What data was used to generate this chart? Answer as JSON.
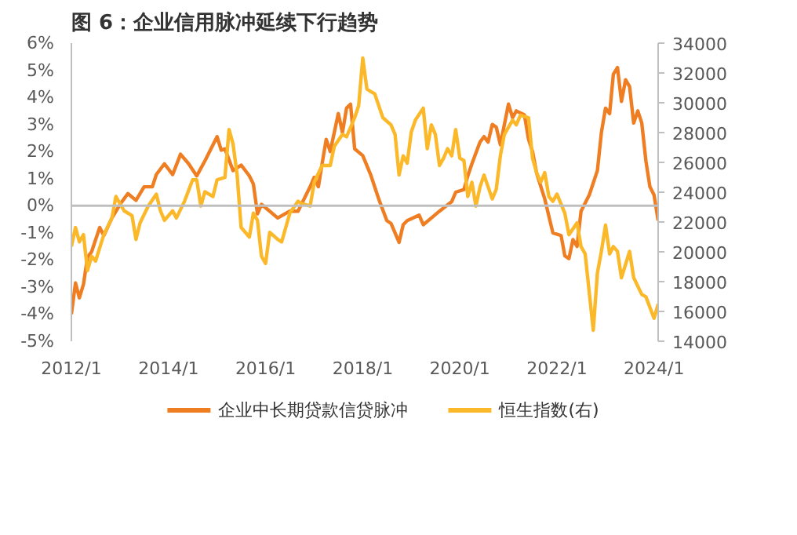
{
  "chart_data": {
    "type": "line",
    "title": "图 6：企业信用脉冲延续下行趋势",
    "xlim": [
      "2012-01",
      "2024-02"
    ],
    "xticks": [
      {
        "value": "2012-01",
        "label": "2012/1"
      },
      {
        "value": "2014-01",
        "label": "2014/1"
      },
      {
        "value": "2016-01",
        "label": "2016/1"
      },
      {
        "value": "2018-01",
        "label": "2018/1"
      },
      {
        "value": "2020-01",
        "label": "2020/1"
      },
      {
        "value": "2022-01",
        "label": "2022/1"
      },
      {
        "value": "2024-01",
        "label": "2024/1"
      }
    ],
    "ylim": [
      -5,
      6
    ],
    "yticks": [
      {
        "value": -5,
        "label": "-5%"
      },
      {
        "value": -4,
        "label": "-4%"
      },
      {
        "value": -3,
        "label": "-3%"
      },
      {
        "value": -2,
        "label": "-2%"
      },
      {
        "value": -1,
        "label": "-1%"
      },
      {
        "value": 0,
        "label": "0%"
      },
      {
        "value": 1,
        "label": "1%"
      },
      {
        "value": 2,
        "label": "2%"
      },
      {
        "value": 3,
        "label": "3%"
      },
      {
        "value": 4,
        "label": "4%"
      },
      {
        "value": 5,
        "label": "5%"
      },
      {
        "value": 6,
        "label": "6%"
      }
    ],
    "y2lim": [
      14000,
      34000
    ],
    "y2ticks": [
      14000,
      16000,
      18000,
      20000,
      22000,
      24000,
      26000,
      28000,
      30000,
      32000,
      34000
    ],
    "ref_lines": [
      {
        "axis": "y",
        "value": 0,
        "color": "#bfbfbf"
      }
    ],
    "legend": "bottom",
    "grid": false,
    "series": [
      {
        "name": "企业中长期贷款信贷脉冲",
        "color": "#ef7d22",
        "x": [
          "2012-01",
          "2012-02",
          "2012-03",
          "2012-04",
          "2012-05",
          "2012-06",
          "2012-08",
          "2012-09",
          "2012-11",
          "2013-01",
          "2013-03",
          "2013-05",
          "2013-07",
          "2013-09",
          "2013-10",
          "2013-12",
          "2014-02",
          "2014-04",
          "2014-06",
          "2014-08",
          "2014-10",
          "2015-01",
          "2015-02",
          "2015-03",
          "2015-05",
          "2015-07",
          "2015-09",
          "2015-10",
          "2015-11",
          "2015-12",
          "2016-02",
          "2016-04",
          "2016-07",
          "2016-09",
          "2016-12",
          "2017-01",
          "2017-02",
          "2017-03",
          "2017-04",
          "2017-05",
          "2017-07",
          "2017-08",
          "2017-09",
          "2017-10",
          "2017-11",
          "2018-01",
          "2018-03",
          "2018-05",
          "2018-07",
          "2018-08",
          "2018-10",
          "2018-11",
          "2018-12",
          "2019-03",
          "2019-04",
          "2019-06",
          "2019-08",
          "2019-11",
          "2019-12",
          "2020-02",
          "2020-03",
          "2020-04",
          "2020-06",
          "2020-07",
          "2020-08",
          "2020-09",
          "2020-10",
          "2020-11",
          "2021-01",
          "2021-02",
          "2021-03",
          "2021-05",
          "2021-06",
          "2021-07",
          "2021-08",
          "2021-10",
          "2021-12",
          "2022-02",
          "2022-03",
          "2022-04",
          "2022-05",
          "2022-06",
          "2022-07",
          "2022-09",
          "2022-11",
          "2022-12",
          "2023-01",
          "2023-02",
          "2023-03",
          "2023-04",
          "2023-05",
          "2023-06",
          "2023-07",
          "2023-08",
          "2023-09",
          "2023-10",
          "2023-11",
          "2023-12",
          "2024-01",
          "2024-02"
        ],
        "values": [
          -4.0,
          -2.85,
          -3.4,
          -2.9,
          -1.9,
          -1.7,
          -0.8,
          -1.1,
          -0.45,
          0.05,
          0.45,
          0.2,
          0.7,
          0.7,
          1.15,
          1.55,
          1.15,
          1.9,
          1.55,
          1.1,
          1.65,
          2.55,
          2.05,
          2.1,
          1.3,
          1.5,
          1.1,
          0.8,
          -0.3,
          0.05,
          -0.2,
          -0.45,
          -0.2,
          -0.2,
          0.7,
          1.05,
          0.7,
          1.55,
          2.45,
          2.0,
          3.4,
          2.7,
          3.6,
          3.75,
          2.1,
          1.85,
          1.15,
          0.25,
          -0.55,
          -0.65,
          -1.35,
          -0.7,
          -0.55,
          -0.35,
          -0.7,
          -0.45,
          -0.2,
          0.15,
          0.5,
          0.6,
          1.1,
          1.55,
          2.35,
          2.55,
          2.35,
          3.0,
          2.9,
          2.25,
          3.75,
          3.25,
          3.5,
          3.35,
          2.45,
          2.0,
          1.2,
          0.25,
          -1.0,
          -1.1,
          -1.85,
          -1.95,
          -1.25,
          -1.5,
          -0.2,
          0.4,
          1.3,
          2.7,
          3.6,
          3.4,
          4.85,
          5.1,
          3.85,
          4.65,
          4.4,
          3.05,
          3.5,
          3.05,
          1.65,
          0.7,
          0.4,
          -0.55
        ]
      },
      {
        "name": "恒生指数(右)",
        "color": "#fbb829",
        "axis": "y2",
        "x": [
          "2012-01",
          "2012-02",
          "2012-03",
          "2012-04",
          "2012-05",
          "2012-06",
          "2012-07",
          "2012-09",
          "2012-11",
          "2012-12",
          "2013-02",
          "2013-04",
          "2013-05",
          "2013-06",
          "2013-08",
          "2013-10",
          "2013-11",
          "2013-12",
          "2014-02",
          "2014-03",
          "2014-05",
          "2014-07",
          "2014-08",
          "2014-09",
          "2014-10",
          "2014-12",
          "2015-01",
          "2015-03",
          "2015-04",
          "2015-05",
          "2015-06",
          "2015-07",
          "2015-09",
          "2015-10",
          "2015-11",
          "2015-12",
          "2016-01",
          "2016-02",
          "2016-04",
          "2016-05",
          "2016-07",
          "2016-09",
          "2016-10",
          "2016-12",
          "2017-01",
          "2017-03",
          "2017-05",
          "2017-06",
          "2017-08",
          "2017-09",
          "2017-11",
          "2017-12",
          "2018-01",
          "2018-02",
          "2018-03",
          "2018-04",
          "2018-06",
          "2018-08",
          "2018-09",
          "2018-10",
          "2018-11",
          "2018-12",
          "2019-01",
          "2019-02",
          "2019-04",
          "2019-05",
          "2019-06",
          "2019-07",
          "2019-08",
          "2019-09",
          "2019-10",
          "2019-11",
          "2019-12",
          "2020-01",
          "2020-02",
          "2020-03",
          "2020-04",
          "2020-05",
          "2020-06",
          "2020-07",
          "2020-09",
          "2020-10",
          "2020-11",
          "2020-12",
          "2021-02",
          "2021-03",
          "2021-04",
          "2021-06",
          "2021-07",
          "2021-08",
          "2021-09",
          "2021-10",
          "2021-11",
          "2021-12",
          "2022-01",
          "2022-03",
          "2022-04",
          "2022-06",
          "2022-07",
          "2022-08",
          "2022-10",
          "2022-11",
          "2022-12",
          "2023-01",
          "2023-02",
          "2023-03",
          "2023-04",
          "2023-05",
          "2023-07",
          "2023-08",
          "2023-10",
          "2023-11",
          "2024-01",
          "2024-02"
        ],
        "values": [
          20350,
          21630,
          20670,
          21150,
          18740,
          19700,
          19380,
          21150,
          22270,
          23710,
          22750,
          22430,
          20830,
          21950,
          23070,
          23870,
          22750,
          22110,
          22750,
          22270,
          23390,
          24830,
          24830,
          23070,
          24030,
          23710,
          24830,
          24990,
          28200,
          27240,
          25150,
          21630,
          20990,
          22590,
          22110,
          19700,
          19220,
          21310,
          20830,
          20670,
          22590,
          23390,
          23230,
          23070,
          24670,
          25790,
          25790,
          27080,
          27880,
          27720,
          29000,
          29800,
          33000,
          30920,
          30760,
          30600,
          29000,
          28520,
          27880,
          25150,
          26440,
          25950,
          28040,
          28840,
          29640,
          26920,
          28520,
          27880,
          25790,
          26280,
          26920,
          26440,
          28200,
          26280,
          26120,
          23710,
          24670,
          23070,
          24350,
          25150,
          23550,
          24190,
          26440,
          27880,
          28840,
          28520,
          29160,
          29000,
          26280,
          25310,
          24670,
          25310,
          23710,
          23390,
          23870,
          22590,
          21150,
          21950,
          20350,
          19860,
          14740,
          18580,
          20030,
          21790,
          19860,
          20350,
          20030,
          18260,
          20030,
          18260,
          17140,
          16980,
          15540,
          16500
        ]
      }
    ]
  }
}
